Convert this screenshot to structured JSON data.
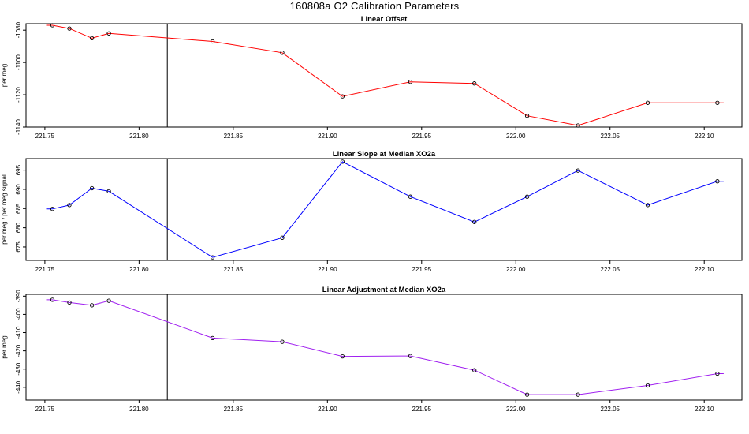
{
  "figure": {
    "title": "160808a   O2 Calibration Parameters"
  },
  "chart_data": [
    {
      "type": "line",
      "title": "Linear Offset",
      "xlabel": "",
      "ylabel": "per meg",
      "color": "#ff0000",
      "x": [
        221.754,
        221.763,
        221.775,
        221.784,
        221.839,
        221.876,
        221.908,
        221.944,
        221.978,
        222.006,
        222.033,
        222.07,
        222.107
      ],
      "y": [
        -1077,
        -1079,
        -1085,
        -1082,
        -1087,
        -1094,
        -1121,
        -1112,
        -1113,
        -1133,
        -1139,
        -1125,
        -1125
      ],
      "xlim": [
        221.74,
        222.12
      ],
      "ylim": [
        -1140,
        -1076
      ],
      "xticks": [
        221.75,
        221.8,
        221.85,
        221.9,
        221.95,
        222.0,
        222.05,
        222.1
      ],
      "xtick_labels": [
        "221.75",
        "221.80",
        "221.85",
        "221.90",
        "221.95",
        "222.00",
        "222.05",
        "222.10"
      ],
      "yticks": [
        -1080,
        -1100,
        -1120,
        -1140
      ],
      "ytick_labels": [
        "-1080",
        "-1100",
        "-1120",
        "-1140"
      ],
      "vline": 221.815
    },
    {
      "type": "line",
      "title": "Linear Slope at Median XO2a",
      "xlabel": "",
      "ylabel": "per meg / per meg signal",
      "color": "#0000ff",
      "x": [
        221.754,
        221.763,
        221.775,
        221.784,
        221.839,
        221.876,
        221.908,
        221.944,
        221.978,
        222.006,
        222.033,
        222.07,
        222.107
      ],
      "y": [
        684.9,
        685.9,
        690.3,
        689.5,
        672.3,
        677.4,
        697.2,
        688.1,
        681.5,
        688.1,
        694.9,
        685.9,
        692.1
      ],
      "xlim": [
        221.74,
        222.12
      ],
      "ylim": [
        671.5,
        698.0
      ],
      "xticks": [
        221.75,
        221.8,
        221.85,
        221.9,
        221.95,
        222.0,
        222.05,
        222.1
      ],
      "xtick_labels": [
        "221.75",
        "221.80",
        "221.85",
        "221.90",
        "221.95",
        "222.00",
        "222.05",
        "222.10"
      ],
      "yticks": [
        675,
        680,
        685,
        690,
        695
      ],
      "ytick_labels": [
        "675",
        "680",
        "685",
        "690",
        "695"
      ],
      "vline": 221.815
    },
    {
      "type": "line",
      "title": "Linear Adjustment at Median XO2a",
      "xlabel": "",
      "ylabel": "per meg",
      "color": "#a020f0",
      "x": [
        221.754,
        221.763,
        221.775,
        221.784,
        221.839,
        221.876,
        221.908,
        221.944,
        221.978,
        222.006,
        222.033,
        222.07,
        222.107
      ],
      "y": [
        -392,
        -393.5,
        -395,
        -392.5,
        -413,
        -415,
        -423,
        -422.8,
        -430.6,
        -444,
        -444,
        -439,
        -432.5
      ],
      "xlim": [
        221.74,
        222.12
      ],
      "ylim": [
        -447,
        -389
      ],
      "xticks": [
        221.75,
        221.8,
        221.85,
        221.9,
        221.95,
        222.0,
        222.05,
        222.1
      ],
      "xtick_labels": [
        "221.75",
        "221.80",
        "221.85",
        "221.90",
        "221.95",
        "222.00",
        "222.05",
        "222.10"
      ],
      "yticks": [
        -390,
        -400,
        -410,
        -420,
        -430,
        -440
      ],
      "ytick_labels": [
        "-390",
        "-400",
        "-410",
        "-420",
        "-430",
        "-440"
      ],
      "vline": 221.815
    }
  ]
}
